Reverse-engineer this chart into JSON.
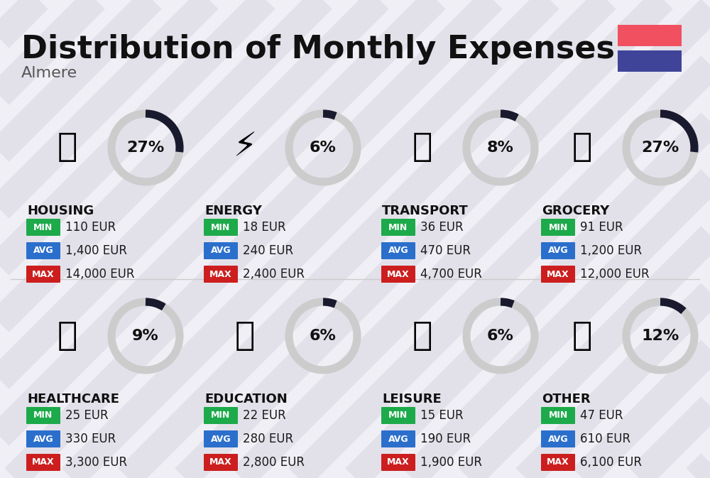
{
  "title": "Distribution of Monthly Expenses",
  "subtitle": "Almere",
  "background_color": "#f0eff5",
  "flag_red": "#f05060",
  "flag_blue": "#3f4499",
  "categories": [
    {
      "name": "HOUSING",
      "percent": 27,
      "min_val": "110 EUR",
      "avg_val": "1,400 EUR",
      "max_val": "14,000 EUR",
      "col": 0,
      "row": 0
    },
    {
      "name": "ENERGY",
      "percent": 6,
      "min_val": "18 EUR",
      "avg_val": "240 EUR",
      "max_val": "2,400 EUR",
      "col": 1,
      "row": 0
    },
    {
      "name": "TRANSPORT",
      "percent": 8,
      "min_val": "36 EUR",
      "avg_val": "470 EUR",
      "max_val": "4,700 EUR",
      "col": 2,
      "row": 0
    },
    {
      "name": "GROCERY",
      "percent": 27,
      "min_val": "91 EUR",
      "avg_val": "1,200 EUR",
      "max_val": "12,000 EUR",
      "col": 3,
      "row": 0
    },
    {
      "name": "HEALTHCARE",
      "percent": 9,
      "min_val": "25 EUR",
      "avg_val": "330 EUR",
      "max_val": "3,300 EUR",
      "col": 0,
      "row": 1
    },
    {
      "name": "EDUCATION",
      "percent": 6,
      "min_val": "22 EUR",
      "avg_val": "280 EUR",
      "max_val": "2,800 EUR",
      "col": 1,
      "row": 1
    },
    {
      "name": "LEISURE",
      "percent": 6,
      "min_val": "15 EUR",
      "avg_val": "190 EUR",
      "max_val": "1,900 EUR",
      "col": 2,
      "row": 1
    },
    {
      "name": "OTHER",
      "percent": 12,
      "min_val": "47 EUR",
      "avg_val": "610 EUR",
      "max_val": "6,100 EUR",
      "col": 3,
      "row": 1
    }
  ],
  "min_color": "#1daa4a",
  "avg_color": "#2b6fcc",
  "max_color": "#cc1e1e",
  "value_text_color": "#1a1a1a",
  "category_text_color": "#111111",
  "donut_filled_color": "#1a1a2e",
  "donut_empty_color": "#cccccc",
  "stripe_color": "#d5d4e0",
  "stripe_alpha": 0.5,
  "title_fontsize": 32,
  "subtitle_fontsize": 16,
  "category_fontsize": 13,
  "badge_fontsize": 9,
  "value_fontsize": 12,
  "percent_fontsize": 16,
  "icon_fontsize": 34
}
